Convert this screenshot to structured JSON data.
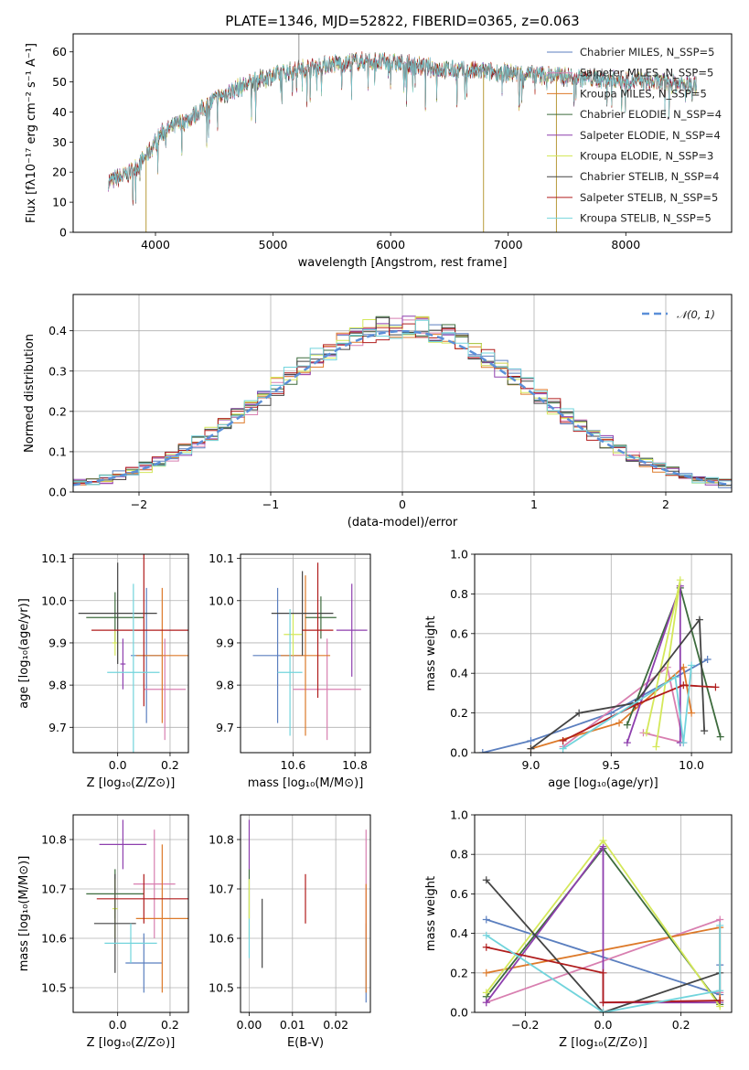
{
  "chart_data": [
    {
      "id": "spectrum",
      "type": "line",
      "title": "PLATE=1346, MJD=52822, FIBERID=0365, z=0.063",
      "xlabel": "wavelength [Angstrom, rest frame]",
      "ylabel": "Flux [fλ10⁻¹⁷ erg cm⁻² s⁻¹ A⁻¹]",
      "xlim": [
        3300,
        8900
      ],
      "ylim": [
        0,
        66
      ],
      "xticks": [
        4000,
        5000,
        6000,
        7000,
        8000
      ],
      "yticks": [
        0,
        10,
        20,
        30,
        40,
        50,
        60
      ],
      "legend_position": "top-right",
      "grid": false,
      "x_range_data": [
        3600,
        8600
      ],
      "continuum_anchors": {
        "x": [
          3600,
          3750,
          3850,
          3950,
          4050,
          4300,
          4500,
          4700,
          4900,
          5200,
          5500,
          5800,
          6100,
          6500,
          7000,
          7400,
          7800,
          8200,
          8600
        ],
        "y": [
          17,
          19,
          22,
          27,
          33,
          38,
          44,
          48,
          51,
          54,
          56,
          57,
          56,
          54,
          53,
          52,
          51,
          50,
          49
        ]
      },
      "spikes_down": [
        {
          "x": 3920,
          "y": 0
        },
        {
          "x": 6790,
          "y": 0
        },
        {
          "x": 7410,
          "y": 0
        }
      ],
      "spikes_up": [
        {
          "x": 5220,
          "y": 66
        }
      ],
      "series": [
        {
          "name": "Chabrier MILES, N_SSP=5",
          "color": "#5b7fbf"
        },
        {
          "name": "Salpeter MILES, N_SSP=5",
          "color": "#d87fb0"
        },
        {
          "name": "Kroupa MILES, N_SSP=5",
          "color": "#dd7a2a"
        },
        {
          "name": "Chabrier ELODIE, N_SSP=4",
          "color": "#3d6b3d"
        },
        {
          "name": "Salpeter ELODIE, N_SSP=4",
          "color": "#8e3fae"
        },
        {
          "name": "Kroupa ELODIE, N_SSP=3",
          "color": "#d4e85a"
        },
        {
          "name": "Chabrier STELIB, N_SSP=4",
          "color": "#444444"
        },
        {
          "name": "Salpeter STELIB, N_SSP=5",
          "color": "#b01c1c"
        },
        {
          "name": "Kroupa STELIB, N_SSP=5",
          "color": "#72d4dc"
        }
      ]
    },
    {
      "id": "residuals",
      "type": "line",
      "xlabel": "(data-model)/error",
      "ylabel": "Normed distribution",
      "xlim": [
        -2.5,
        2.5
      ],
      "ylim": [
        0,
        0.49
      ],
      "xticks": [
        -2,
        -1,
        0,
        1,
        2
      ],
      "yticks": [
        0.0,
        0.1,
        0.2,
        0.3,
        0.4
      ],
      "grid": true,
      "legend": "𝒩(0, 1)",
      "legend_position": "top-right",
      "gaussian_color": "#5b8fd8",
      "bin_width": 0.1,
      "histogram_colors": [
        "#5b7fbf",
        "#d87fb0",
        "#dd7a2a",
        "#3d6b3d",
        "#8e3fae",
        "#d4e85a",
        "#444444",
        "#b01c1c",
        "#72d4dc"
      ]
    },
    {
      "id": "age-vs-Z",
      "type": "scatter",
      "xlabel": "Z [log₁₀(Z/Z⊙)]",
      "ylabel": "age  [log₁₀(age/yr)]",
      "xlim": [
        -0.17,
        0.27
      ],
      "ylim": [
        9.64,
        10.11
      ],
      "xticks": [
        0.0,
        0.2
      ],
      "yticks": [
        9.7,
        9.8,
        9.9,
        10.0,
        10.1
      ],
      "grid": true,
      "points": [
        {
          "x": 0.11,
          "y": 9.87,
          "xerr": 0.06,
          "yerr": 0.16,
          "color": "#5b7fbf"
        },
        {
          "x": 0.18,
          "y": 9.79,
          "xerr": 0.08,
          "yerr": 0.12,
          "color": "#d87fb0"
        },
        {
          "x": 0.17,
          "y": 9.87,
          "xerr": 0.1,
          "yerr": 0.16,
          "color": "#dd7a2a"
        },
        {
          "x": -0.01,
          "y": 9.96,
          "xerr": 0.11,
          "yerr": 0.06,
          "color": "#3d6b3d"
        },
        {
          "x": 0.02,
          "y": 9.85,
          "xerr": 0.01,
          "yerr": 0.06,
          "color": "#8e3fae"
        },
        {
          "x": -0.01,
          "y": 9.9,
          "xerr": 0.01,
          "yerr": 0.03,
          "color": "#d4e85a"
        },
        {
          "x": 0.0,
          "y": 9.97,
          "xerr": 0.15,
          "yerr": 0.12,
          "color": "#444444"
        },
        {
          "x": 0.1,
          "y": 9.93,
          "xerr": 0.2,
          "yerr": 0.18,
          "color": "#b01c1c"
        },
        {
          "x": 0.06,
          "y": 9.83,
          "xerr": 0.1,
          "yerr": 0.21,
          "color": "#72d4dc"
        }
      ]
    },
    {
      "id": "age-vs-mass",
      "type": "scatter",
      "xlabel": "mass [log₁₀(M/M⊙)]",
      "ylabel": "",
      "xlim": [
        10.43,
        10.85
      ],
      "ylim": [
        9.64,
        10.11
      ],
      "xticks": [
        10.6,
        10.8
      ],
      "yticks": [
        9.7,
        9.8,
        9.9,
        10.0,
        10.1
      ],
      "grid": true,
      "points": [
        {
          "x": 10.55,
          "y": 9.87,
          "xerr": 0.08,
          "yerr": 0.16,
          "color": "#5b7fbf"
        },
        {
          "x": 10.71,
          "y": 9.79,
          "xerr": 0.11,
          "yerr": 0.12,
          "color": "#d87fb0"
        },
        {
          "x": 10.64,
          "y": 9.87,
          "xerr": 0.08,
          "yerr": 0.19,
          "color": "#dd7a2a"
        },
        {
          "x": 10.69,
          "y": 9.96,
          "xerr": 0.05,
          "yerr": 0.05,
          "color": "#3d6b3d"
        },
        {
          "x": 10.79,
          "y": 9.93,
          "xerr": 0.05,
          "yerr": 0.11,
          "color": "#8e3fae"
        },
        {
          "x": 10.6,
          "y": 9.92,
          "xerr": 0.03,
          "yerr": 0.05,
          "color": "#d4e85a"
        },
        {
          "x": 10.63,
          "y": 9.97,
          "xerr": 0.1,
          "yerr": 0.1,
          "color": "#444444"
        },
        {
          "x": 10.68,
          "y": 9.93,
          "xerr": 0.05,
          "yerr": 0.16,
          "color": "#b01c1c"
        },
        {
          "x": 10.59,
          "y": 9.83,
          "xerr": 0.04,
          "yerr": 0.15,
          "color": "#72d4dc"
        }
      ]
    },
    {
      "id": "weight-vs-age",
      "type": "line",
      "xlabel": "age  [log₁₀(age/yr)]",
      "ylabel": "mass weight",
      "xlim": [
        8.65,
        10.25
      ],
      "ylim": [
        0,
        1
      ],
      "xticks": [
        9.0,
        9.5,
        10.0
      ],
      "yticks": [
        0.0,
        0.2,
        0.4,
        0.6,
        0.8,
        1.0
      ],
      "grid": true,
      "series": [
        {
          "color": "#5b7fbf",
          "x": [
            8.7,
            9.0,
            9.5,
            10.1
          ],
          "y": [
            0.0,
            0.06,
            0.2,
            0.47
          ]
        },
        {
          "color": "#d87fb0",
          "x": [
            9.2,
            9.85,
            9.95,
            9.7
          ],
          "y": [
            0.03,
            0.43,
            0.05,
            0.1
          ]
        },
        {
          "color": "#dd7a2a",
          "x": [
            9.0,
            9.55,
            9.95,
            10.0
          ],
          "y": [
            0.02,
            0.15,
            0.43,
            0.2
          ]
        },
        {
          "color": "#3d6b3d",
          "x": [
            9.6,
            9.93,
            10.18
          ],
          "y": [
            0.14,
            0.83,
            0.08
          ]
        },
        {
          "color": "#8e3fae",
          "x": [
            9.6,
            9.93,
            9.93
          ],
          "y": [
            0.05,
            0.84,
            0.05
          ]
        },
        {
          "color": "#d4e85a",
          "x": [
            9.72,
            9.93,
            9.78
          ],
          "y": [
            0.1,
            0.87,
            0.03
          ]
        },
        {
          "color": "#444444",
          "x": [
            9.0,
            9.3,
            9.65,
            10.05,
            10.08
          ],
          "y": [
            0.02,
            0.2,
            0.25,
            0.67,
            0.11
          ]
        },
        {
          "color": "#b01c1c",
          "x": [
            9.2,
            9.65,
            9.95,
            10.15
          ],
          "y": [
            0.06,
            0.24,
            0.34,
            0.33
          ]
        },
        {
          "color": "#72d4dc",
          "x": [
            9.2,
            9.9,
            9.95,
            10.0
          ],
          "y": [
            0.02,
            0.38,
            0.05,
            0.44
          ]
        }
      ]
    },
    {
      "id": "mass-vs-Z",
      "type": "scatter",
      "xlabel": "Z [log₁₀(Z/Z⊙)]",
      "ylabel": "mass [log₁₀(M/M⊙)]",
      "xlim": [
        -0.17,
        0.27
      ],
      "ylim": [
        10.45,
        10.85
      ],
      "xticks": [
        0.0,
        0.2
      ],
      "yticks": [
        10.5,
        10.6,
        10.7,
        10.8
      ],
      "grid": true,
      "points": [
        {
          "x": 0.1,
          "y": 10.55,
          "xerr": 0.07,
          "yerr": 0.06,
          "color": "#5b7fbf"
        },
        {
          "x": 0.14,
          "y": 10.71,
          "xerr": 0.08,
          "yerr": 0.11,
          "color": "#d87fb0"
        },
        {
          "x": 0.17,
          "y": 10.64,
          "xerr": 0.1,
          "yerr": 0.15,
          "color": "#dd7a2a"
        },
        {
          "x": -0.01,
          "y": 10.69,
          "xerr": 0.11,
          "yerr": 0.05,
          "color": "#3d6b3d"
        },
        {
          "x": 0.02,
          "y": 10.79,
          "xerr": 0.09,
          "yerr": 0.05,
          "color": "#8e3fae"
        },
        {
          "x": -0.01,
          "y": 10.66,
          "xerr": 0.01,
          "yerr": 0.06,
          "color": "#d4e85a"
        },
        {
          "x": -0.01,
          "y": 10.63,
          "xerr": 0.08,
          "yerr": 0.1,
          "color": "#444444"
        },
        {
          "x": 0.1,
          "y": 10.68,
          "xerr": 0.18,
          "yerr": 0.05,
          "color": "#b01c1c"
        },
        {
          "x": 0.05,
          "y": 10.59,
          "xerr": 0.1,
          "yerr": 0.04,
          "color": "#72d4dc"
        }
      ]
    },
    {
      "id": "mass-vs-EBV",
      "type": "scatter",
      "xlabel": "E(B-V)",
      "ylabel": "",
      "xlim": [
        -0.002,
        0.028
      ],
      "ylim": [
        10.45,
        10.85
      ],
      "xticks": [
        0.0,
        0.01,
        0.02
      ],
      "yticks": [
        10.5,
        10.6,
        10.7,
        10.8
      ],
      "grid": true,
      "points": [
        {
          "x": 0.027,
          "y": 10.55,
          "xerr": 0,
          "yerr": 0.08,
          "color": "#5b7fbf"
        },
        {
          "x": 0.027,
          "y": 10.71,
          "xerr": 0,
          "yerr": 0.11,
          "color": "#d87fb0"
        },
        {
          "x": 0.027,
          "y": 10.6,
          "xerr": 0,
          "yerr": 0.11,
          "color": "#dd7a2a"
        },
        {
          "x": 0.0,
          "y": 10.69,
          "xerr": 0,
          "yerr": 0.05,
          "color": "#3d6b3d"
        },
        {
          "x": 0.0,
          "y": 10.79,
          "xerr": 0,
          "yerr": 0.05,
          "color": "#8e3fae"
        },
        {
          "x": 0.0,
          "y": 10.66,
          "xerr": 0,
          "yerr": 0.06,
          "color": "#d4e85a"
        },
        {
          "x": 0.003,
          "y": 10.61,
          "xerr": 0,
          "yerr": 0.07,
          "color": "#444444"
        },
        {
          "x": 0.013,
          "y": 10.68,
          "xerr": 0,
          "yerr": 0.05,
          "color": "#b01c1c"
        },
        {
          "x": 0.0,
          "y": 10.6,
          "xerr": 0,
          "yerr": 0.04,
          "color": "#72d4dc"
        }
      ]
    },
    {
      "id": "weight-vs-Z",
      "type": "line",
      "xlabel": "Z [log₁₀(Z/Z⊙)]",
      "ylabel": "mass weight",
      "xlim": [
        -0.33,
        0.33
      ],
      "ylim": [
        0,
        1
      ],
      "xticks": [
        -0.2,
        0.0,
        0.2
      ],
      "yticks": [
        0.0,
        0.2,
        0.4,
        0.6,
        0.8,
        1.0
      ],
      "grid": true,
      "series": [
        {
          "color": "#5b7fbf",
          "x": [
            -0.3,
            0.3,
            0.3
          ],
          "y": [
            0.47,
            0.09,
            0.24
          ]
        },
        {
          "color": "#d87fb0",
          "x": [
            -0.3,
            0.3,
            0.3
          ],
          "y": [
            0.05,
            0.47,
            0.1
          ]
        },
        {
          "color": "#dd7a2a",
          "x": [
            -0.3,
            0.3,
            0.3
          ],
          "y": [
            0.2,
            0.43,
            0.06
          ]
        },
        {
          "color": "#3d6b3d",
          "x": [
            -0.3,
            0.0,
            0.3
          ],
          "y": [
            0.08,
            0.83,
            0.04
          ]
        },
        {
          "color": "#8e3fae",
          "x": [
            -0.3,
            0.0,
            0.0,
            0.3
          ],
          "y": [
            0.05,
            0.84,
            0.05,
            0.05
          ]
        },
        {
          "color": "#d4e85a",
          "x": [
            -0.3,
            0.0,
            0.3
          ],
          "y": [
            0.1,
            0.87,
            0.03
          ]
        },
        {
          "color": "#444444",
          "x": [
            -0.3,
            0.0,
            0.3
          ],
          "y": [
            0.67,
            0.0,
            0.2
          ]
        },
        {
          "color": "#b01c1c",
          "x": [
            -0.3,
            0.0,
            0.0,
            0.3
          ],
          "y": [
            0.33,
            0.2,
            0.05,
            0.06
          ]
        },
        {
          "color": "#72d4dc",
          "x": [
            -0.3,
            0.0,
            0.3,
            0.3
          ],
          "y": [
            0.39,
            0.0,
            0.11,
            0.44
          ]
        }
      ]
    }
  ]
}
